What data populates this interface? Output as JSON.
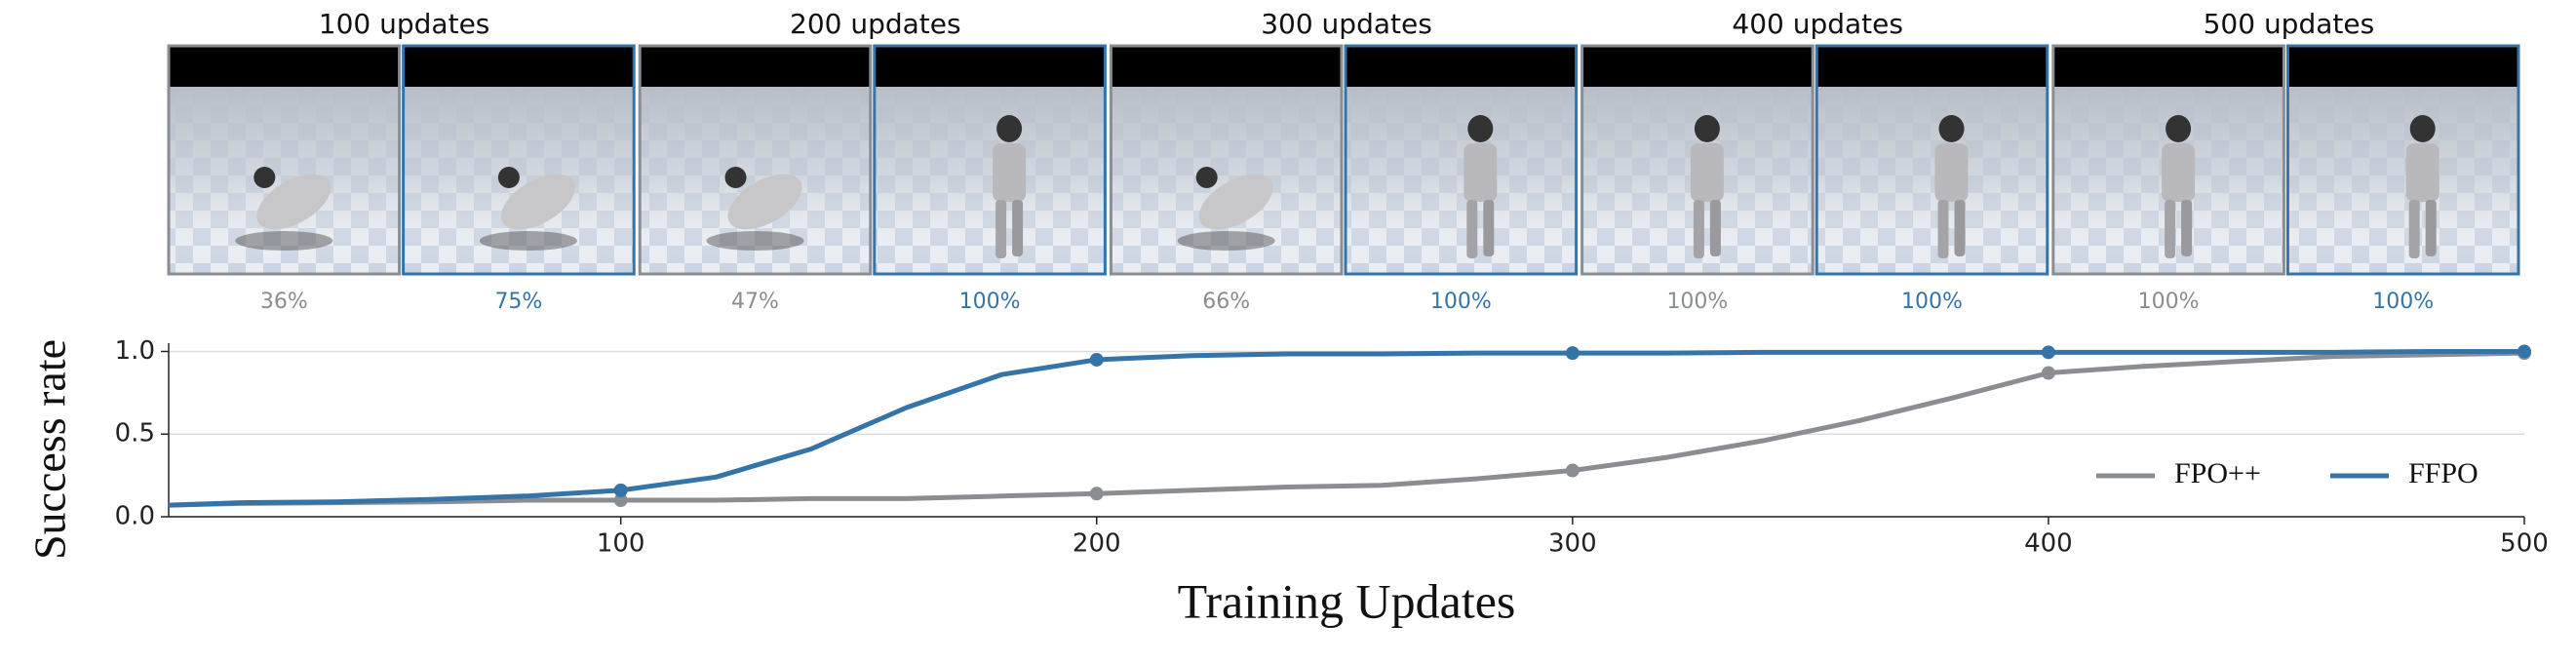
{
  "panels": [
    {
      "title": "100 updates",
      "left_label": "36%",
      "right_label": "75%"
    },
    {
      "title": "200 updates",
      "left_label": "47%",
      "right_label": "100%"
    },
    {
      "title": "300 updates",
      "left_label": "66%",
      "right_label": "100%"
    },
    {
      "title": "400 updates",
      "left_label": "100%",
      "right_label": "100%"
    },
    {
      "title": "500 updates",
      "left_label": "100%",
      "right_label": "100%"
    }
  ],
  "chart_data": {
    "type": "line",
    "x_label": "Training Updates",
    "y_label": "Success rate",
    "xlim": [
      5,
      500
    ],
    "ylim": [
      0,
      1.05
    ],
    "xticks": [
      100,
      200,
      300,
      400,
      500
    ],
    "yticks": [
      {
        "value": 0,
        "label": "0.0"
      },
      {
        "value": 0.5,
        "label": "0.5"
      },
      {
        "value": 1,
        "label": "1.0"
      }
    ],
    "grid": true,
    "legend": "lower right",
    "x": [
      5,
      20,
      40,
      60,
      80,
      100,
      120,
      140,
      160,
      180,
      200,
      220,
      240,
      260,
      280,
      300,
      320,
      340,
      360,
      380,
      400,
      420,
      440,
      460,
      480,
      500
    ],
    "series": [
      {
        "name": "FPO++",
        "color": "#8a8d91",
        "values": [
          0.07,
          0.08,
          0.085,
          0.09,
          0.1,
          0.1,
          0.1,
          0.11,
          0.11,
          0.125,
          0.14,
          0.16,
          0.18,
          0.19,
          0.23,
          0.28,
          0.36,
          0.46,
          0.58,
          0.72,
          0.87,
          0.91,
          0.94,
          0.97,
          0.98,
          0.99
        ]
      },
      {
        "name": "FFPO",
        "color": "#3574a8",
        "values": [
          0.07,
          0.085,
          0.09,
          0.105,
          0.125,
          0.16,
          0.24,
          0.41,
          0.66,
          0.86,
          0.95,
          0.975,
          0.985,
          0.985,
          0.99,
          0.99,
          0.99,
          0.995,
          0.995,
          0.995,
          0.995,
          0.995,
          0.995,
          0.995,
          1.0,
          1.0
        ]
      }
    ]
  }
}
